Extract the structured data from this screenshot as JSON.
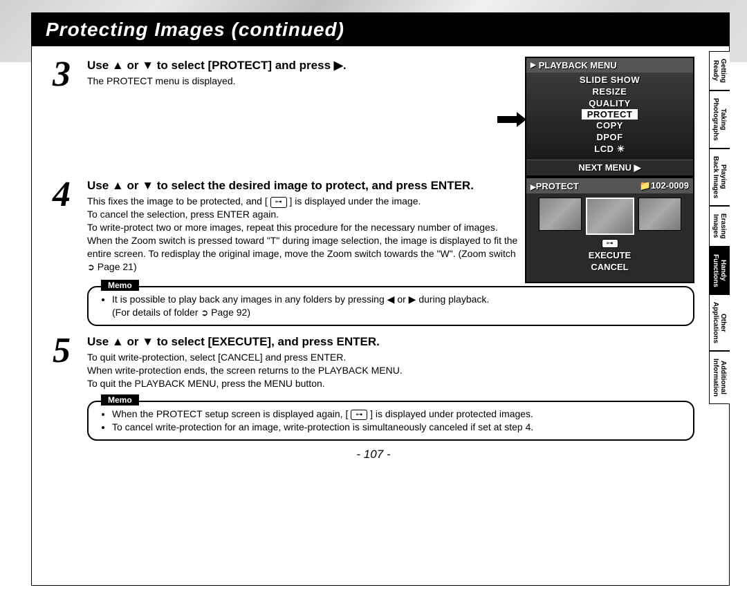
{
  "page": {
    "title": "Protecting Images (continued)",
    "number": "- 107 -"
  },
  "tabs": [
    {
      "l1": "Getting",
      "l2": "Ready",
      "active": false
    },
    {
      "l1": "Taking",
      "l2": "Photographs",
      "active": false
    },
    {
      "l1": "Playing",
      "l2": "Back Images",
      "active": false
    },
    {
      "l1": "Erasing",
      "l2": "Images",
      "active": false
    },
    {
      "l1": "Handy",
      "l2": "Functions",
      "active": true
    },
    {
      "l1": "Other",
      "l2": "Applications",
      "active": false
    },
    {
      "l1": "Additional",
      "l2": "Information",
      "active": false
    }
  ],
  "steps": {
    "s3": {
      "num": "3",
      "title_a": "Use ",
      "title_b": " or ",
      "title_c": " to select [PROTECT] and press ",
      "title_d": ".",
      "text": "The PROTECT menu is displayed."
    },
    "s4": {
      "num": "4",
      "title_a": "Use ",
      "title_b": " or ",
      "title_c": " to select the desired image to protect, and press ENTER.",
      "line1a": "This fixes the image to be protected, and [ ",
      "line1b": " ] is displayed under the image.",
      "line2": "To cancel the selection, press ENTER again.",
      "line3": "To write-protect two or more images, repeat this procedure for the necessary number of images.",
      "line4": "When the Zoom switch is pressed toward \"T\" during image selection, the image is displayed to fit the entire screen. To redisplay the original image, move the Zoom switch towards the \"W\". (Zoom switch ",
      "line4b": " Page 21)"
    },
    "s5": {
      "num": "5",
      "title_a": "Use ",
      "title_b": " or ",
      "title_c": " to select [EXECUTE], and press ENTER.",
      "line1": "To quit write-protection, select [CANCEL] and press ENTER.",
      "line2": "When write-protection ends, the screen returns to the PLAYBACK MENU.",
      "line3": "To quit the PLAYBACK MENU, press the MENU button."
    }
  },
  "memo1": {
    "label": "Memo",
    "bullet_a": "It is possible to play back any images in any folders by pressing ",
    "bullet_b": " or ",
    "bullet_c": " during playback.",
    "bullet2a": "(For details of folder ",
    "bullet2b": " Page 92)"
  },
  "memo2": {
    "label": "Memo",
    "bullet1a": "When the PROTECT setup screen is displayed again, [ ",
    "bullet1b": " ] is displayed under protected images.",
    "bullet2": "To cancel write-protection for an image, write-protection is simultaneously canceled if set at step 4."
  },
  "lcd1": {
    "header": "PLAYBACK MENU",
    "items": [
      "SLIDE SHOW",
      "RESIZE",
      "QUALITY",
      "PROTECT",
      "COPY",
      "DPOF",
      "LCD ☀"
    ],
    "selected_index": 3,
    "footer": "NEXT MENU ▶"
  },
  "lcd2": {
    "header_left": "PROTECT",
    "header_right": "📁102-0009",
    "key_label": "🔑",
    "actions": [
      "EXECUTE",
      "CANCEL"
    ]
  }
}
